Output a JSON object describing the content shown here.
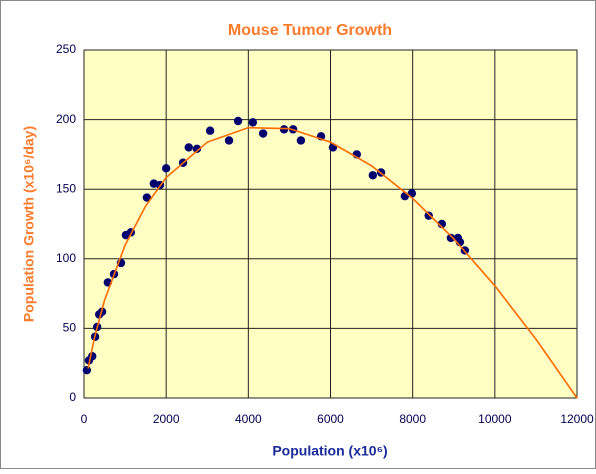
{
  "chart_data": {
    "type": "scatter",
    "title": "Mouse Tumor Growth",
    "x_label": "Population (x10⁶)",
    "y_label": "Population Growth (x10⁶/day)",
    "xlim": [
      0,
      12000
    ],
    "xticks": [
      0,
      2000,
      4000,
      6000,
      8000,
      10000,
      12000
    ],
    "ylim": [
      0,
      250
    ],
    "yticks": [
      0,
      50,
      100,
      150,
      200,
      250
    ],
    "grid": true,
    "series": [
      {
        "type": "scatter",
        "color": "#00006e",
        "x": [
          70,
          120,
          200,
          270,
          320,
          370,
          440,
          580,
          730,
          900,
          1020,
          1140,
          1530,
          1700,
          1850,
          2000,
          2410,
          2550,
          2750,
          3070,
          3530,
          3750,
          4110,
          4360,
          4870,
          5090,
          5280,
          5770,
          6060,
          6640,
          7030,
          7230,
          7810,
          7980,
          8390,
          8710,
          8930,
          9100,
          9150,
          9270
        ],
        "values": [
          20,
          27,
          30,
          44,
          51,
          60,
          62,
          83,
          89,
          97,
          117,
          119,
          144,
          154,
          153,
          165,
          169,
          180,
          179,
          192,
          185,
          199,
          198,
          190,
          193,
          193,
          185,
          188,
          180,
          175,
          160,
          162,
          145,
          147,
          131,
          125,
          115,
          115,
          112,
          106
        ]
      },
      {
        "type": "line",
        "color": "#ff6a00",
        "x": [
          100,
          250,
          500,
          1000,
          1500,
          2000,
          3000,
          4000,
          5000,
          6000,
          7000,
          8000,
          9000,
          10000,
          11000,
          12000
        ],
        "values": [
          21.2,
          42.8,
          70.2,
          109.8,
          137.9,
          158.4,
          183.8,
          194.2,
          193.5,
          183.8,
          166.8,
          143.4,
          114.4,
          80.6,
          42.3,
          0
        ]
      }
    ]
  }
}
